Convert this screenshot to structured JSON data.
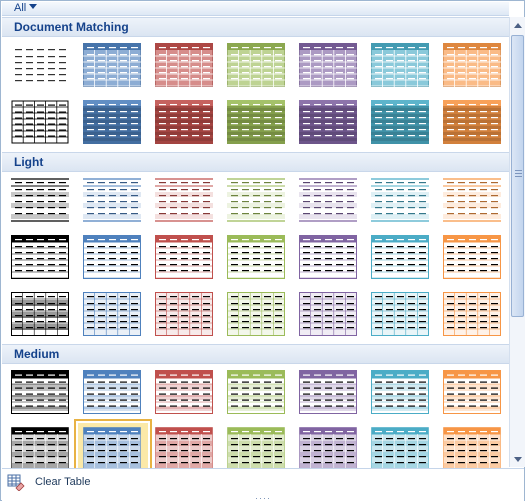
{
  "filter": {
    "label": "All"
  },
  "sections": [
    {
      "title": "Document Matching",
      "rows": [
        [
          "plain",
          "accent0",
          "accent1",
          "accent2",
          "accent3",
          "accent4",
          "accent5"
        ],
        [
          "grid-black",
          "accent0-dark",
          "accent1-dark",
          "accent2-dark",
          "accent3-dark",
          "accent4-dark",
          "accent5-dark"
        ]
      ]
    },
    {
      "title": "Light",
      "rows": [
        [
          "light-shade",
          "light-shade",
          "light-shade",
          "light-shade",
          "light-shade",
          "light-shade",
          "light-shade"
        ],
        [
          "light-list",
          "light-list",
          "light-list",
          "light-list",
          "light-list",
          "light-list",
          "light-list"
        ],
        [
          "light-grid",
          "light-grid",
          "light-grid",
          "light-grid",
          "light-grid",
          "light-grid",
          "light-grid"
        ]
      ]
    },
    {
      "title": "Medium",
      "rows": [
        [
          "medium-shade",
          "medium-shade",
          "medium-shade",
          "medium-shade",
          "medium-shade",
          "medium-shade",
          "medium-shade"
        ],
        [
          "medium-grid",
          "medium-grid",
          "medium-grid",
          "medium-grid",
          "medium-grid",
          "medium-grid",
          "medium-grid"
        ]
      ]
    }
  ],
  "colors": {
    "col0": "#000000",
    "col1": "#4f81bd",
    "col2": "#c0504d",
    "col3": "#9bbb59",
    "col4": "#8064a2",
    "col5": "#4bacc6",
    "col6": "#f79646"
  },
  "selected_style": {
    "section": 2,
    "row": 1,
    "col": 1
  },
  "footer": {
    "clear_label": "Clear Table",
    "clear_icon": "table-eraser-icon",
    "grip_icon": "resize-grip-icon"
  }
}
